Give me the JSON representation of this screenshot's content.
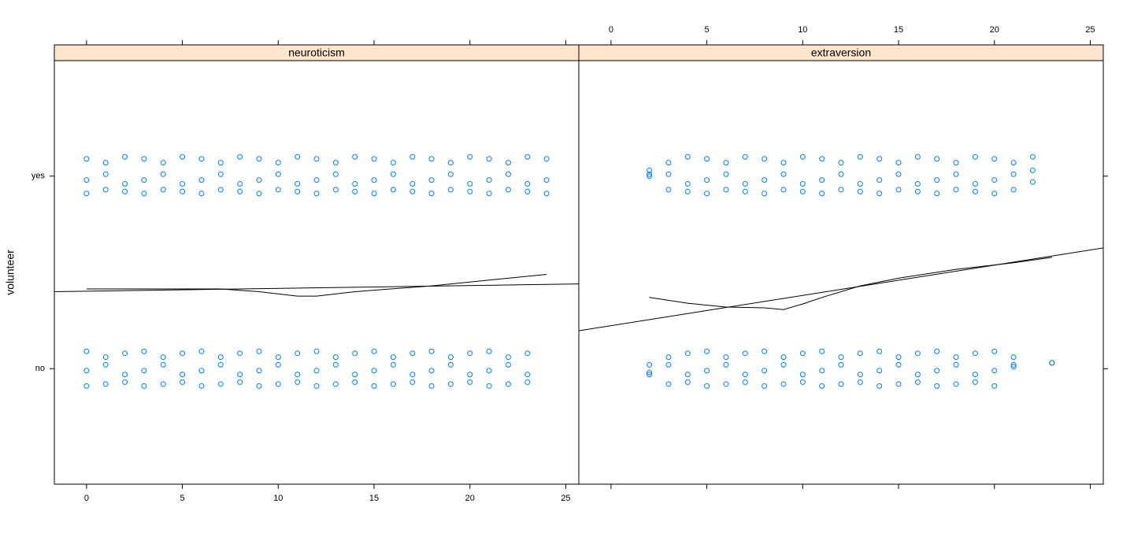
{
  "chart_data": [
    {
      "type": "scatter",
      "strip": "neuroticism",
      "ylabel": "volunteer",
      "color": "#0080ff",
      "xlim": [
        -1.68,
        25.68
      ],
      "xticks": [
        0,
        5,
        10,
        15,
        20,
        25
      ],
      "ylim": [
        0.4,
        2.6
      ],
      "yticks": [
        {
          "value": 1,
          "label": "no"
        },
        {
          "value": 2,
          "label": "yes"
        }
      ],
      "points": {
        "x": [
          0,
          0,
          0,
          1,
          1,
          1,
          2,
          2,
          2,
          3,
          3,
          3,
          4,
          4,
          4,
          5,
          5,
          5,
          6,
          6,
          6,
          7,
          7,
          7,
          8,
          8,
          8,
          9,
          9,
          9,
          10,
          10,
          10,
          11,
          11,
          11,
          12,
          12,
          12,
          13,
          13,
          13,
          14,
          14,
          14,
          15,
          15,
          15,
          16,
          16,
          16,
          17,
          17,
          17,
          18,
          18,
          18,
          19,
          19,
          19,
          20,
          20,
          20,
          21,
          21,
          21,
          22,
          22,
          22,
          23,
          23,
          23,
          24,
          24,
          24,
          0,
          0,
          0,
          1,
          1,
          1,
          2,
          2,
          2,
          3,
          3,
          3,
          4,
          4,
          4,
          5,
          5,
          5,
          6,
          6,
          6,
          7,
          7,
          7,
          8,
          8,
          8,
          9,
          9,
          9,
          10,
          10,
          10,
          11,
          11,
          11,
          12,
          12,
          12,
          13,
          13,
          13,
          14,
          14,
          14,
          15,
          15,
          15,
          16,
          16,
          16,
          17,
          17,
          17,
          18,
          18,
          18,
          19,
          19,
          19,
          20,
          20,
          20,
          21,
          21,
          21,
          22,
          22,
          22,
          23,
          23,
          23
        ],
        "y": [
          2.09,
          1.98,
          1.91,
          2.07,
          2.01,
          1.93,
          2.1,
          1.96,
          1.92,
          2.09,
          1.98,
          1.91,
          2.07,
          2.01,
          1.93,
          2.1,
          1.96,
          1.92,
          2.09,
          1.98,
          1.91,
          2.07,
          2.01,
          1.93,
          2.1,
          1.96,
          1.92,
          2.09,
          1.98,
          1.91,
          2.07,
          2.01,
          1.93,
          2.1,
          1.96,
          1.92,
          2.09,
          1.98,
          1.91,
          2.07,
          2.01,
          1.93,
          2.1,
          1.96,
          1.92,
          2.09,
          1.98,
          1.91,
          2.07,
          2.01,
          1.93,
          2.1,
          1.96,
          1.92,
          2.09,
          1.98,
          1.91,
          2.07,
          2.01,
          1.93,
          2.1,
          1.96,
          1.92,
          2.09,
          1.98,
          1.91,
          2.07,
          2.01,
          1.93,
          2.1,
          1.96,
          1.92,
          2.09,
          1.98,
          1.91,
          1.09,
          0.99,
          0.91,
          1.06,
          1.02,
          0.92,
          1.08,
          0.97,
          0.93,
          1.09,
          0.99,
          0.91,
          1.06,
          1.02,
          0.92,
          1.08,
          0.97,
          0.93,
          1.09,
          0.99,
          0.91,
          1.06,
          1.02,
          0.92,
          1.08,
          0.97,
          0.93,
          1.09,
          0.99,
          0.91,
          1.06,
          1.02,
          0.92,
          1.08,
          0.97,
          0.93,
          1.09,
          0.99,
          0.91,
          1.06,
          1.02,
          0.92,
          1.08,
          0.97,
          0.93,
          1.09,
          0.99,
          0.91,
          1.06,
          1.02,
          0.92,
          1.08,
          0.97,
          0.93,
          1.09,
          0.99,
          0.91,
          1.06,
          1.02,
          0.92,
          1.08,
          0.97,
          0.93,
          1.09,
          0.99,
          0.91,
          1.06,
          1.02,
          0.92,
          1.08,
          0.97,
          0.93
        ]
      },
      "linear": {
        "x": [
          -1.68,
          25.68
        ],
        "y": [
          1.4,
          1.44
        ]
      },
      "smooth": {
        "x": [
          0,
          5,
          7,
          9,
          11,
          12,
          14,
          18,
          22,
          24
        ],
        "y": [
          1.414,
          1.414,
          1.414,
          1.4,
          1.377,
          1.377,
          1.4,
          1.43,
          1.47,
          1.49
        ]
      }
    },
    {
      "type": "scatter",
      "strip": "extraversion",
      "color": "#0080ff",
      "xlim": [
        -1.68,
        25.68
      ],
      "xticks": [
        0,
        5,
        10,
        15,
        20,
        25
      ],
      "ylim": [
        0.4,
        2.6
      ],
      "yticks": [
        1,
        2
      ],
      "points": {
        "x": [
          2,
          2,
          2,
          3,
          3,
          3,
          4,
          4,
          4,
          5,
          5,
          5,
          6,
          6,
          6,
          7,
          7,
          7,
          8,
          8,
          8,
          9,
          9,
          9,
          10,
          10,
          10,
          11,
          11,
          11,
          12,
          12,
          12,
          13,
          13,
          13,
          14,
          14,
          14,
          15,
          15,
          15,
          16,
          16,
          16,
          17,
          17,
          17,
          18,
          18,
          18,
          19,
          19,
          19,
          20,
          20,
          20,
          21,
          21,
          21,
          22,
          22,
          22,
          2,
          2,
          2,
          3,
          3,
          3,
          4,
          4,
          4,
          5,
          5,
          5,
          6,
          6,
          6,
          7,
          7,
          7,
          8,
          8,
          8,
          9,
          9,
          9,
          10,
          10,
          10,
          11,
          11,
          11,
          12,
          12,
          12,
          13,
          13,
          13,
          14,
          14,
          14,
          15,
          15,
          15,
          16,
          16,
          16,
          17,
          17,
          17,
          18,
          18,
          18,
          19,
          19,
          19,
          20,
          20,
          20,
          21,
          21,
          21,
          23,
          23,
          23
        ],
        "y": [
          2.03,
          2.01,
          2.0,
          2.07,
          2.01,
          1.93,
          2.1,
          1.96,
          1.92,
          2.09,
          1.98,
          1.91,
          2.07,
          2.01,
          1.93,
          2.1,
          1.96,
          1.92,
          2.09,
          1.98,
          1.91,
          2.07,
          2.01,
          1.93,
          2.1,
          1.96,
          1.92,
          2.09,
          1.98,
          1.91,
          2.07,
          2.01,
          1.93,
          2.1,
          1.96,
          1.92,
          2.09,
          1.98,
          1.91,
          2.07,
          2.01,
          1.93,
          2.1,
          1.96,
          1.92,
          2.09,
          1.98,
          1.91,
          2.07,
          2.01,
          1.93,
          2.1,
          1.96,
          1.92,
          2.09,
          1.98,
          1.91,
          2.07,
          2.01,
          1.93,
          2.1,
          2.03,
          1.97,
          1.02,
          0.98,
          0.97,
          1.06,
          1.02,
          0.92,
          1.08,
          0.97,
          0.93,
          1.09,
          0.99,
          0.91,
          1.06,
          1.02,
          0.92,
          1.08,
          0.97,
          0.93,
          1.09,
          0.99,
          0.91,
          1.06,
          1.02,
          0.92,
          1.08,
          0.97,
          0.93,
          1.09,
          0.99,
          0.91,
          1.06,
          1.02,
          0.92,
          1.08,
          0.97,
          0.93,
          1.09,
          0.99,
          0.91,
          1.06,
          1.02,
          0.92,
          1.08,
          0.97,
          0.93,
          1.09,
          0.99,
          0.91,
          1.06,
          1.02,
          0.92,
          1.08,
          0.97,
          0.93,
          1.09,
          0.99,
          0.91,
          1.06,
          1.02,
          1.01,
          1.03,
          1.03,
          1.03
        ]
      },
      "linear": {
        "x": [
          -1.68,
          25.68
        ],
        "y": [
          1.197,
          1.627
        ]
      },
      "smooth": {
        "x": [
          2,
          4,
          6,
          8,
          9,
          10,
          11,
          13,
          15,
          18,
          21,
          23
        ],
        "y": [
          1.37,
          1.34,
          1.32,
          1.316,
          1.307,
          1.336,
          1.37,
          1.43,
          1.47,
          1.516,
          1.55,
          1.578
        ]
      }
    }
  ]
}
